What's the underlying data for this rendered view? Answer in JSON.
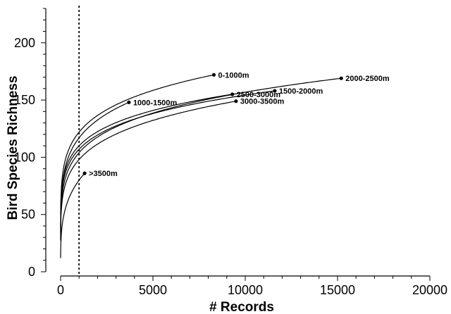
{
  "chart_data": {
    "type": "line",
    "xlabel": "# Records",
    "ylabel": "Bird Species Richness",
    "xlim": [
      0,
      20000
    ],
    "ylim": [
      0,
      230
    ],
    "x_ticks": [
      0,
      5000,
      10000,
      15000,
      20000
    ],
    "y_ticks": [
      0,
      50,
      100,
      150,
      200
    ],
    "y_minor_step": 10,
    "x_minor_step": 1000,
    "grid": false,
    "reference_line": {
      "x": 1000,
      "style": "dotted"
    },
    "series": [
      {
        "name": "0-1000m",
        "end_x": 8300,
        "end_y": 172,
        "y_at_1000": 122
      },
      {
        "name": "1000-1500m",
        "end_x": 3700,
        "end_y": 148,
        "y_at_1000": 117
      },
      {
        "name": "1500-2000m",
        "end_x": 11600,
        "end_y": 158,
        "y_at_1000": 107
      },
      {
        "name": "2000-2500m",
        "end_x": 15200,
        "end_y": 169,
        "y_at_1000": 104
      },
      {
        "name": "2500-3000m",
        "end_x": 9300,
        "end_y": 155,
        "y_at_1000": 110
      },
      {
        "name": "3000-3500m",
        "end_x": 9500,
        "end_y": 149,
        "y_at_1000": 98
      },
      {
        "name": ">3500m",
        "end_x": 1300,
        "end_y": 86,
        "y_at_1000": 80
      }
    ]
  }
}
